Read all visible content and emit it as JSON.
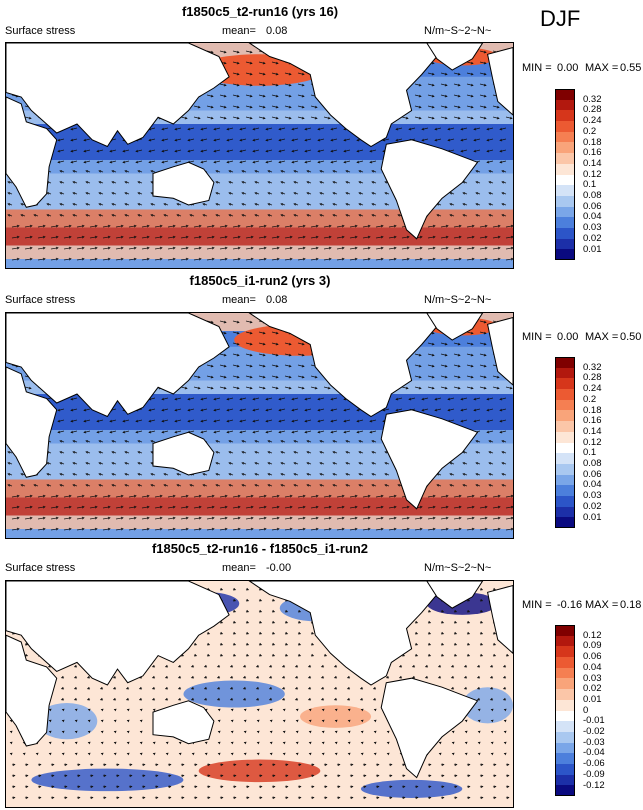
{
  "season": "DJF",
  "panels": [
    {
      "title": "f1850c5_t2-run16 (yrs 16)",
      "left_label": "Surface stress",
      "mean_label": "mean=",
      "mean_value": "0.08",
      "units": "N/m~S~2~N~",
      "min_label": "MIN =",
      "min_value": "0.00",
      "max_label": "MAX =",
      "max_value": "0.55"
    },
    {
      "title": "f1850c5_i1-run2 (yrs 3)",
      "left_label": "Surface stress",
      "mean_label": "mean=",
      "mean_value": "0.08",
      "units": "N/m~S~2~N~",
      "min_label": "MIN =",
      "min_value": "0.00",
      "max_label": "MAX =",
      "max_value": "0.50"
    },
    {
      "title": "f1850c5_t2-run16 - f1850c5_i1-run2",
      "left_label": "Surface stress",
      "mean_label": "mean=",
      "mean_value": "-0.00",
      "units": "N/m~S~2~N~",
      "min_label": "MIN =",
      "min_value": "-0.16",
      "max_label": "MAX =",
      "max_value": "0.18"
    }
  ],
  "chart_data": [
    {
      "type": "heatmap",
      "title": "f1850c5_t2-run16 (yrs 16)",
      "variable": "Surface stress",
      "units": "N/m~S~2~N~",
      "mean": 0.08,
      "min": 0.0,
      "max": 0.55,
      "colorbar_levels": [
        "0.32",
        "0.28",
        "0.24",
        "0.2",
        "0.18",
        "0.16",
        "0.14",
        "0.12",
        "0.1",
        "0.08",
        "0.06",
        "0.04",
        "0.03",
        "0.02",
        "0.01"
      ],
      "colorbar_colors": [
        "#7f0000",
        "#b2180e",
        "#d6361b",
        "#ec5a32",
        "#f57f52",
        "#f9a47a",
        "#fbc6a8",
        "#fde6d6",
        "#ffffff",
        "#d4e3f7",
        "#a9c8f0",
        "#7aa6e8",
        "#4c7fdc",
        "#2c55c8",
        "#1c2fa8",
        "#0a0a80"
      ]
    },
    {
      "type": "heatmap",
      "title": "f1850c5_i1-run2 (yrs 3)",
      "variable": "Surface stress",
      "units": "N/m~S~2~N~",
      "mean": 0.08,
      "min": 0.0,
      "max": 0.5,
      "colorbar_levels": [
        "0.32",
        "0.28",
        "0.24",
        "0.2",
        "0.18",
        "0.16",
        "0.14",
        "0.12",
        "0.1",
        "0.08",
        "0.06",
        "0.04",
        "0.03",
        "0.02",
        "0.01"
      ],
      "colorbar_colors": [
        "#7f0000",
        "#b2180e",
        "#d6361b",
        "#ec5a32",
        "#f57f52",
        "#f9a47a",
        "#fbc6a8",
        "#fde6d6",
        "#ffffff",
        "#d4e3f7",
        "#a9c8f0",
        "#7aa6e8",
        "#4c7fdc",
        "#2c55c8",
        "#1c2fa8",
        "#0a0a80"
      ]
    },
    {
      "type": "heatmap",
      "title": "f1850c5_t2-run16 - f1850c5_i1-run2",
      "variable": "Surface stress",
      "units": "N/m~S~2~N~",
      "mean": -0.0,
      "min": -0.16,
      "max": 0.18,
      "colorbar_levels": [
        "0.12",
        "0.09",
        "0.06",
        "0.04",
        "0.03",
        "0.02",
        "0.01",
        "0",
        "-0.01",
        "-0.02",
        "-0.03",
        "-0.04",
        "-0.06",
        "-0.09",
        "-0.12"
      ],
      "colorbar_colors": [
        "#7f0000",
        "#b2180e",
        "#d6361b",
        "#ec5a32",
        "#f57f52",
        "#f9a47a",
        "#fbc6a8",
        "#fde6d6",
        "#ffffff",
        "#d4e3f7",
        "#a9c8f0",
        "#7aa6e8",
        "#4c7fdc",
        "#2c55c8",
        "#1c2fa8",
        "#0a0a80"
      ]
    }
  ]
}
